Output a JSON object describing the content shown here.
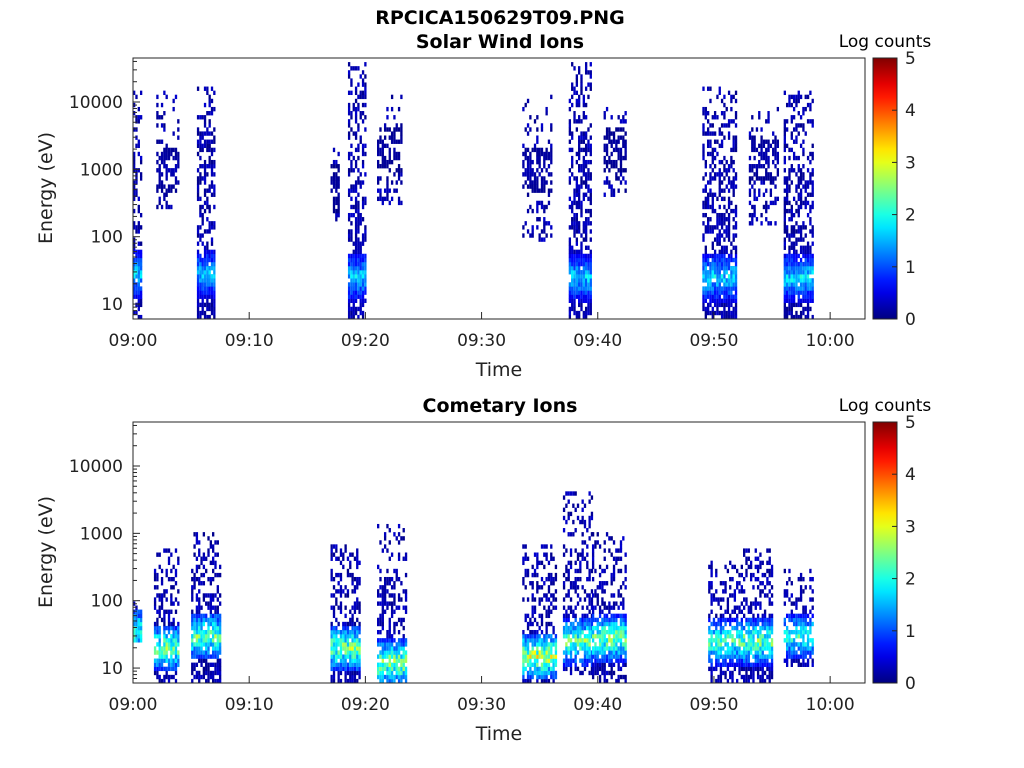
{
  "figure": {
    "filename_title": "RPCICA150629T09.PNG"
  },
  "chart_data": [
    {
      "type": "heatmap",
      "title": "Solar Wind Ions",
      "xlabel": "Time",
      "ylabel": "Energy (eV)",
      "x_unit": "minutes after 09:00",
      "xlim": [
        0,
        63
      ],
      "ylim": [
        6,
        45000
      ],
      "y_scale": "log",
      "x_ticks": [
        {
          "value": 0,
          "label": "09:00"
        },
        {
          "value": 10,
          "label": "09:10"
        },
        {
          "value": 20,
          "label": "09:20"
        },
        {
          "value": 30,
          "label": "09:30"
        },
        {
          "value": 40,
          "label": "09:40"
        },
        {
          "value": 50,
          "label": "09:50"
        },
        {
          "value": 60,
          "label": "10:00"
        }
      ],
      "y_ticks": [
        {
          "value": 10,
          "label": "10"
        },
        {
          "value": 100,
          "label": "100"
        },
        {
          "value": 1000,
          "label": "1000"
        },
        {
          "value": 10000,
          "label": "10000"
        }
      ],
      "colorbar": {
        "label": "Log counts",
        "min": 0,
        "max": 5,
        "ticks": [
          "0",
          "1",
          "2",
          "3",
          "4",
          "5"
        ],
        "colormap": "jet"
      },
      "clusters": [
        {
          "t_start": 0.0,
          "t_end": 0.8,
          "e_low": 6,
          "e_high": 15000,
          "peak_energy": 28,
          "peak_log": 2.0,
          "density": 0.55
        },
        {
          "t_start": 2.0,
          "t_end": 4.0,
          "e_low": 250,
          "e_high": 15000,
          "peak_energy": 1000,
          "peak_log": 0.3,
          "density": 0.22
        },
        {
          "t_start": 5.5,
          "t_end": 7.0,
          "e_low": 6,
          "e_high": 16000,
          "peak_energy": 28,
          "peak_log": 1.8,
          "density": 0.6
        },
        {
          "t_start": 17.0,
          "t_end": 17.6,
          "e_low": 150,
          "e_high": 2000,
          "peak_energy": 500,
          "peak_log": 0.2,
          "density": 0.2
        },
        {
          "t_start": 18.5,
          "t_end": 20.0,
          "e_low": 6,
          "e_high": 40000,
          "peak_energy": 25,
          "peak_log": 1.9,
          "density": 0.62
        },
        {
          "t_start": 21.0,
          "t_end": 23.0,
          "e_low": 300,
          "e_high": 12000,
          "peak_energy": 2000,
          "peak_log": 0.2,
          "density": 0.25
        },
        {
          "t_start": 33.5,
          "t_end": 36.0,
          "e_low": 80,
          "e_high": 12000,
          "peak_energy": 1000,
          "peak_log": 0.3,
          "density": 0.2
        },
        {
          "t_start": 37.5,
          "t_end": 39.5,
          "e_low": 6,
          "e_high": 40000,
          "peak_energy": 25,
          "peak_log": 1.9,
          "density": 0.62
        },
        {
          "t_start": 40.5,
          "t_end": 42.5,
          "e_low": 400,
          "e_high": 9000,
          "peak_energy": 2000,
          "peak_log": 0.2,
          "density": 0.25
        },
        {
          "t_start": 49.0,
          "t_end": 52.0,
          "e_low": 6,
          "e_high": 16000,
          "peak_energy": 25,
          "peak_log": 2.0,
          "density": 0.58
        },
        {
          "t_start": 53.0,
          "t_end": 55.5,
          "e_low": 150,
          "e_high": 9000,
          "peak_energy": 1500,
          "peak_log": 0.3,
          "density": 0.22
        },
        {
          "t_start": 56.0,
          "t_end": 58.5,
          "e_low": 6,
          "e_high": 15000,
          "peak_energy": 25,
          "peak_log": 2.0,
          "density": 0.6
        }
      ]
    },
    {
      "type": "heatmap",
      "title": "Cometary Ions",
      "xlabel": "Time",
      "ylabel": "Energy (eV)",
      "x_unit": "minutes after 09:00",
      "xlim": [
        0,
        63
      ],
      "ylim": [
        6,
        45000
      ],
      "y_scale": "log",
      "x_ticks": [
        {
          "value": 0,
          "label": "09:00"
        },
        {
          "value": 10,
          "label": "09:10"
        },
        {
          "value": 20,
          "label": "09:20"
        },
        {
          "value": 30,
          "label": "09:30"
        },
        {
          "value": 40,
          "label": "09:40"
        },
        {
          "value": 50,
          "label": "09:50"
        },
        {
          "value": 60,
          "label": "10:00"
        }
      ],
      "y_ticks": [
        {
          "value": 10,
          "label": "10"
        },
        {
          "value": 100,
          "label": "100"
        },
        {
          "value": 1000,
          "label": "1000"
        },
        {
          "value": 10000,
          "label": "10000"
        }
      ],
      "colorbar": {
        "label": "Log counts",
        "min": 0,
        "max": 5,
        "ticks": [
          "0",
          "1",
          "2",
          "3",
          "4",
          "5"
        ],
        "colormap": "jet"
      },
      "clusters": [
        {
          "t_start": 0.0,
          "t_end": 0.8,
          "e_low": 25,
          "e_high": 100,
          "peak_energy": 35,
          "peak_log": 2.5,
          "density": 0.6
        },
        {
          "t_start": 1.8,
          "t_end": 4.0,
          "e_low": 6,
          "e_high": 600,
          "peak_energy": 20,
          "peak_log": 2.8,
          "density": 0.5
        },
        {
          "t_start": 5.0,
          "t_end": 7.5,
          "e_low": 6,
          "e_high": 1000,
          "peak_energy": 30,
          "peak_log": 2.7,
          "density": 0.55
        },
        {
          "t_start": 17.0,
          "t_end": 19.5,
          "e_low": 6,
          "e_high": 700,
          "peak_energy": 20,
          "peak_log": 2.9,
          "density": 0.55
        },
        {
          "t_start": 21.0,
          "t_end": 23.5,
          "e_low": 6,
          "e_high": 1300,
          "peak_energy": 12,
          "peak_log": 3.0,
          "density": 0.5
        },
        {
          "t_start": 33.5,
          "t_end": 36.5,
          "e_low": 6,
          "e_high": 700,
          "peak_energy": 15,
          "peak_log": 3.2,
          "density": 0.5
        },
        {
          "t_start": 37.0,
          "t_end": 39.5,
          "e_low": 8,
          "e_high": 4000,
          "peak_energy": 25,
          "peak_log": 2.8,
          "density": 0.45
        },
        {
          "t_start": 39.5,
          "t_end": 42.5,
          "e_low": 6,
          "e_high": 1100,
          "peak_energy": 28,
          "peak_log": 2.9,
          "density": 0.5
        },
        {
          "t_start": 49.5,
          "t_end": 52.5,
          "e_low": 6,
          "e_high": 400,
          "peak_energy": 25,
          "peak_log": 2.6,
          "density": 0.45
        },
        {
          "t_start": 52.5,
          "t_end": 55.0,
          "e_low": 6,
          "e_high": 600,
          "peak_energy": 25,
          "peak_log": 2.8,
          "density": 0.5
        },
        {
          "t_start": 56.0,
          "t_end": 58.5,
          "e_low": 10,
          "e_high": 300,
          "peak_energy": 30,
          "peak_log": 2.4,
          "density": 0.45
        }
      ]
    }
  ]
}
